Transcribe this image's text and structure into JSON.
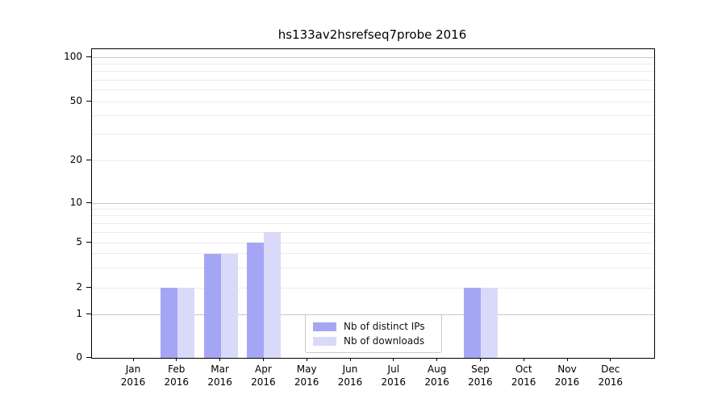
{
  "title": "hs133av2hsrefseq7probe 2016",
  "chart_data": {
    "type": "bar",
    "title": "hs133av2hsrefseq7probe 2016",
    "categories": [
      "Jan 2016",
      "Feb 2016",
      "Mar 2016",
      "Apr 2016",
      "May 2016",
      "Jun 2016",
      "Jul 2016",
      "Aug 2016",
      "Sep 2016",
      "Oct 2016",
      "Nov 2016",
      "Dec 2016"
    ],
    "series": [
      {
        "name": "Nb of distinct IPs",
        "color": "#a5a6f3",
        "values": [
          0,
          2,
          4,
          5,
          0,
          0,
          0,
          0,
          2,
          0,
          0,
          0
        ]
      },
      {
        "name": "Nb of downloads",
        "color": "#d9daf9",
        "values": [
          0,
          2,
          4,
          6,
          0,
          0,
          0,
          0,
          2,
          0,
          0,
          0
        ]
      }
    ],
    "yscale": "symlog",
    "ylim": [
      0,
      130
    ],
    "ytick_values": [
      100,
      50,
      20,
      10,
      5,
      2,
      1,
      0
    ],
    "ytick_labels": [
      "100",
      "50",
      "20",
      "10",
      "5",
      "2",
      "1",
      "0"
    ],
    "major_gridline_values": [
      1,
      10,
      100
    ],
    "minor_gridline_values": [
      2,
      3,
      4,
      5,
      6,
      7,
      8,
      9,
      20,
      30,
      40,
      50,
      60,
      70,
      80,
      90
    ],
    "grid": "on",
    "legend_position": "lower center",
    "colors": {
      "axis": "#000000",
      "text": "#000000",
      "major_grid": "#c8c8c8",
      "minor_grid": "#ebebeb",
      "background": "#ffffff"
    }
  }
}
